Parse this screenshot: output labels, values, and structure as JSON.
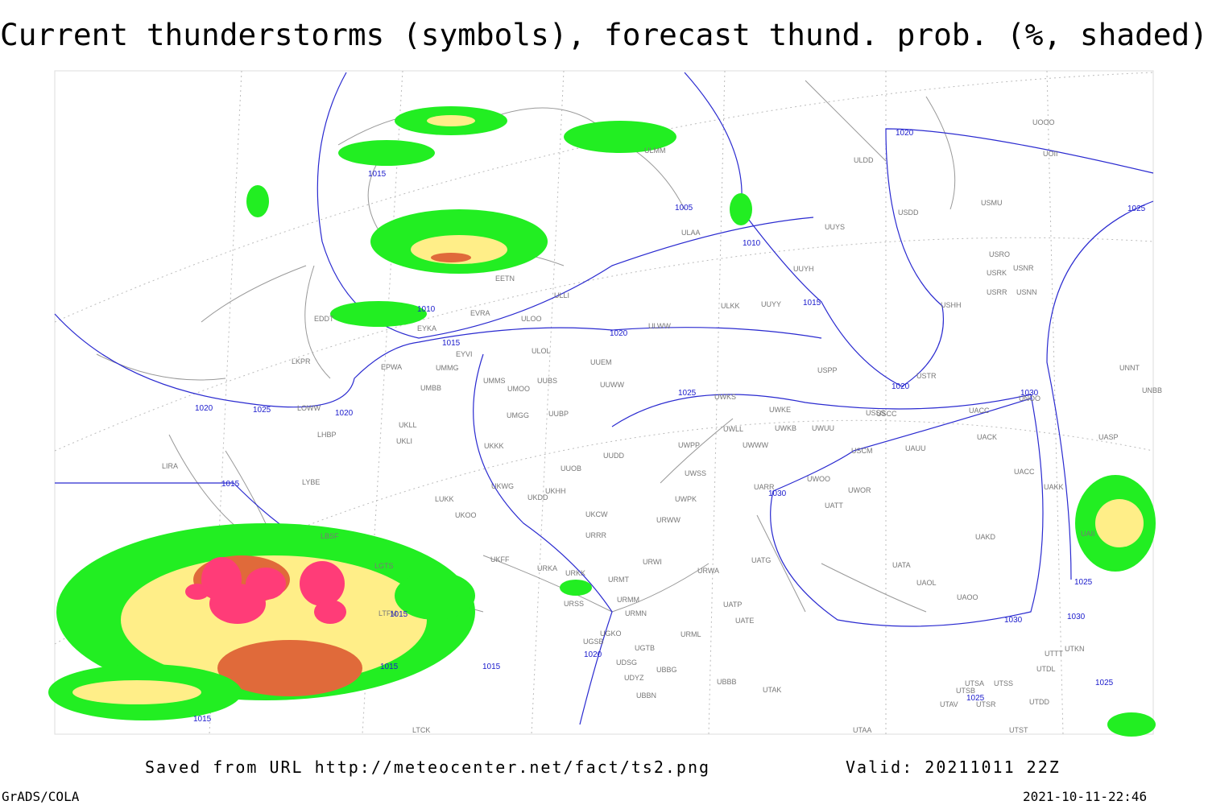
{
  "header": {
    "title": "Current thunderstorms (symbols), forecast thund. prob. (%, shaded)"
  },
  "map": {
    "stations": [
      "UOOO",
      "UOII",
      "ULDD",
      "USMU",
      "USDD",
      "ULAA",
      "UUYS",
      "USRO",
      "USNR",
      "USRK",
      "UUYH",
      "USRR",
      "USNN",
      "ULLI",
      "USHH",
      "ULKK",
      "UUYY",
      "ULOO",
      "EVRA",
      "EETN",
      "ULMM",
      "EDDT",
      "EYKA",
      "ULWW",
      "EYVI",
      "ULOL",
      "UUEM",
      "USPP",
      "USTR",
      "UNNT",
      "EPWA",
      "UMMG",
      "LKPR",
      "UMMS",
      "UUBS",
      "UUWW",
      "UMOO",
      "UMBB",
      "UWKS",
      "USSS",
      "USCC",
      "UNOO",
      "UNBB",
      "LOWW",
      "UWKE",
      "UACC",
      "UMGG",
      "UUBP",
      "UKLL",
      "UWLL",
      "UWKB",
      "UWUU",
      "UACK",
      "UASP",
      "UKLI",
      "LHBP",
      "UWPP",
      "UWWW",
      "USCM",
      "UAUU",
      "UKKK",
      "UUDD",
      "LIRA",
      "UUOB",
      "UWSS",
      "UACC",
      "LYBE",
      "UKHH",
      "UKDD",
      "UKWG",
      "UARR",
      "UWOO",
      "UWOR",
      "UAKK",
      "LUKK",
      "UWPK",
      "UATT",
      "UKOO",
      "UKCW",
      "URWW",
      "UAKD",
      "LBSF",
      "URRR",
      "UAII",
      "UKFF",
      "URWI",
      "UATG",
      "URKA",
      "URKK",
      "URWA",
      "UATA",
      "LGTS",
      "URMT",
      "UAOL",
      "URMM",
      "URSS",
      "UATP",
      "UAOO",
      "LTFM",
      "URMN",
      "UATE",
      "URML",
      "UGKO",
      "UGSB",
      "UTTT",
      "UGTB",
      "UTKN",
      "UDSG",
      "UBBG",
      "UTDL",
      "UDYZ",
      "UBBB",
      "UTSA",
      "UTSS",
      "UTAK",
      "UTSB",
      "UBBN",
      "UTDD",
      "UTAV",
      "UTSR",
      "LTCK",
      "UTAA",
      "UTST"
    ],
    "isobar_labels": [
      1020,
      1015,
      1005,
      1010,
      1025,
      1015,
      1010,
      1015,
      1020,
      1020,
      1025,
      1030,
      1020,
      1025,
      1020,
      1015,
      1030,
      1025,
      1015,
      1030,
      1030,
      1020,
      1015,
      1015,
      1025,
      1025,
      1015
    ]
  },
  "footer": {
    "source": "Saved from URL http://meteocenter.net/fact/ts2.png",
    "valid": "Valid: 20211011 22Z",
    "software": "GrADS/COLA",
    "timestamp": "2021-10-11-22:46"
  }
}
